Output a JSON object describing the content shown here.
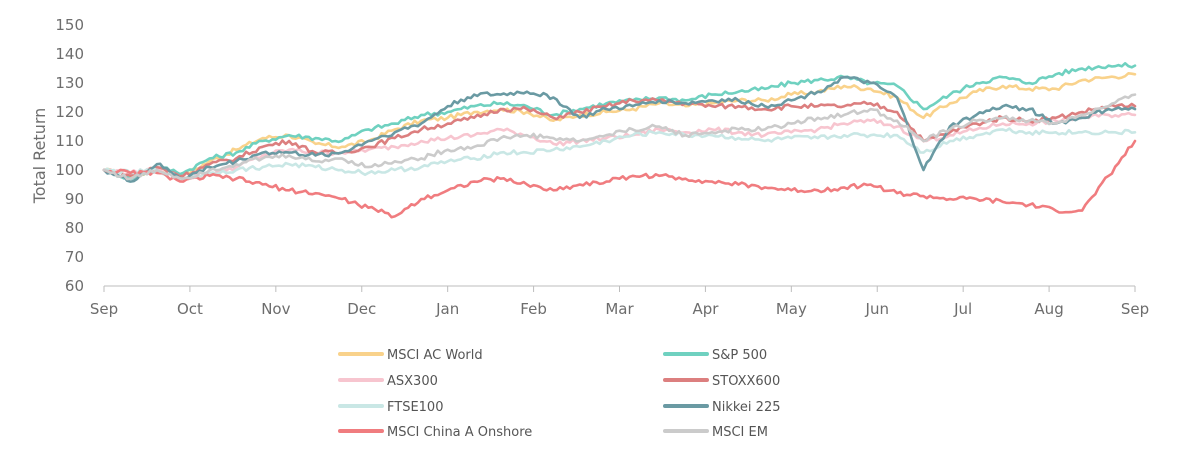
{
  "chart_data": {
    "type": "line",
    "title": "",
    "xlabel": "",
    "ylabel": "Total Return",
    "ylim": [
      60,
      150
    ],
    "yticks": [
      60,
      70,
      80,
      90,
      100,
      110,
      120,
      130,
      140,
      150
    ],
    "x_tick_labels": [
      "Sep",
      "Oct",
      "Nov",
      "Dec",
      "Jan",
      "Feb",
      "Mar",
      "Apr",
      "May",
      "Jun",
      "Jul",
      "Aug",
      "Sep"
    ],
    "grid": false,
    "legend_position": "bottom",
    "series": [
      {
        "name": "MSCI AC World",
        "color": "#f9d28b",
        "values": [
          100,
          98,
          100,
          98,
          103,
          107,
          111,
          112,
          109,
          108,
          110,
          114,
          117,
          118,
          120,
          121,
          120,
          117,
          119,
          120,
          121,
          123,
          122,
          123,
          124,
          124,
          126,
          127,
          129,
          128,
          125,
          118,
          123,
          127,
          129,
          128,
          128,
          131,
          132,
          133
        ]
      },
      {
        "name": "S&P 500",
        "color": "#6fd1c0",
        "values": [
          100,
          97,
          101,
          99,
          104,
          106,
          110,
          112,
          111,
          110,
          114,
          116,
          119,
          120,
          122,
          123,
          122,
          119,
          121,
          123,
          124,
          125,
          124,
          126,
          127,
          128,
          130,
          131,
          132,
          130,
          129,
          121,
          126,
          130,
          132,
          130,
          133,
          135,
          136,
          136
        ]
      },
      {
        "name": "ASX300",
        "color": "#f7c5cf",
        "values": [
          100,
          99,
          100,
          97,
          99,
          101,
          105,
          107,
          106,
          106,
          107,
          108,
          110,
          111,
          112,
          114,
          112,
          109,
          110,
          111,
          112,
          114,
          113,
          114,
          113,
          112,
          113,
          114,
          116,
          117,
          115,
          110,
          112,
          114,
          116,
          116,
          117,
          118,
          119,
          119
        ]
      },
      {
        "name": "STOXX600",
        "color": "#dc7f7f",
        "values": [
          100,
          98,
          101,
          98,
          102,
          104,
          108,
          110,
          106,
          106,
          108,
          111,
          114,
          116,
          118,
          121,
          121,
          118,
          120,
          122,
          124,
          124,
          123,
          122,
          122,
          121,
          122,
          122,
          122,
          123,
          120,
          110,
          113,
          116,
          118,
          117,
          118,
          120,
          122,
          122
        ]
      },
      {
        "name": "FTSE100",
        "color": "#c9e7e5",
        "values": [
          100,
          99,
          100,
          97,
          99,
          100,
          101,
          102,
          101,
          100,
          99,
          100,
          101,
          103,
          104,
          106,
          106,
          107,
          108,
          110,
          112,
          113,
          112,
          112,
          111,
          110,
          111,
          111,
          112,
          112,
          112,
          106,
          110,
          112,
          114,
          113,
          113,
          113,
          113,
          113
        ]
      },
      {
        "name": "Nikkei 225",
        "color": "#6a9aa3",
        "values": [
          100,
          96,
          102,
          97,
          101,
          103,
          106,
          106,
          105,
          106,
          110,
          113,
          116,
          122,
          126,
          126,
          127,
          125,
          118,
          121,
          122,
          124,
          123,
          124,
          124,
          122,
          124,
          127,
          132,
          130,
          125,
          100,
          115,
          119,
          122,
          121,
          116,
          118,
          121,
          121
        ]
      },
      {
        "name": "MSCI China A Onshore",
        "color": "#f07c7f",
        "values": [
          100,
          99,
          99,
          96,
          98,
          97,
          95,
          93,
          92,
          90,
          87,
          84,
          90,
          93,
          96,
          97,
          95,
          93,
          95,
          96,
          98,
          98,
          97,
          96,
          95,
          94,
          93,
          93,
          94,
          95,
          92,
          91,
          90,
          90,
          89,
          88,
          86,
          86,
          98,
          110
        ]
      },
      {
        "name": "MSCI EM",
        "color": "#cbcbcb",
        "values": [
          100,
          97,
          100,
          97,
          100,
          102,
          104,
          105,
          103,
          104,
          101,
          103,
          104,
          107,
          108,
          111,
          112,
          111,
          110,
          112,
          114,
          115,
          112,
          113,
          114,
          114,
          116,
          118,
          119,
          121,
          117,
          110,
          114,
          117,
          118,
          117,
          116,
          119,
          122,
          126
        ]
      }
    ]
  }
}
